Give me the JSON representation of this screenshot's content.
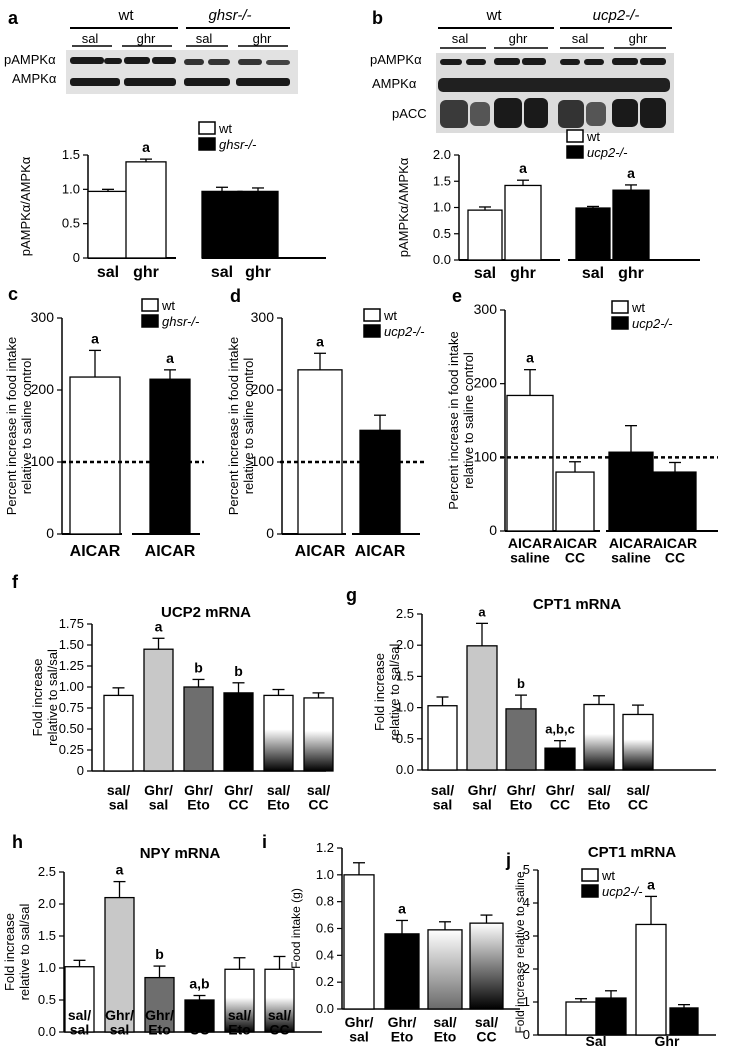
{
  "colors": {
    "wt": "#ffffff",
    "ko": "#000000",
    "light_gray": "#c8c8c8",
    "dark_gray": "#6e6e6e",
    "outline": "#000000"
  },
  "panels": {
    "a": {
      "letter": "a",
      "blot": {
        "groups": [
          "wt",
          "ghsr-/-"
        ],
        "treatments": [
          "sal",
          "ghr",
          "sal",
          "ghr"
        ],
        "rows": [
          "pAMPKα",
          "AMPKα"
        ]
      }
    },
    "b": {
      "letter": "b",
      "blot": {
        "groups": [
          "wt",
          "ucp2-/-"
        ],
        "treatments": [
          "sal",
          "ghr",
          "sal",
          "ghr"
        ],
        "rows": [
          "pAMPKα",
          "AMPKα",
          "pACC"
        ]
      }
    },
    "c": {
      "letter": "c"
    },
    "d": {
      "letter": "d"
    },
    "e": {
      "letter": "e"
    },
    "f": {
      "letter": "f"
    },
    "g": {
      "letter": "g"
    },
    "h": {
      "letter": "h"
    },
    "i": {
      "letter": "i"
    },
    "j": {
      "letter": "j"
    }
  },
  "chart_data": [
    {
      "id": "a",
      "type": "bar",
      "ylabel": "pAMPKα/AMPKα",
      "ylim": [
        0,
        1.5
      ],
      "yticks": [
        "0",
        "0.5",
        "1.0",
        "1.5"
      ],
      "categories": [
        "sal",
        "ghr",
        "sal",
        "ghr"
      ],
      "values": [
        0.97,
        1.4,
        0.97,
        0.97
      ],
      "errors": [
        0.03,
        0.04,
        0.06,
        0.05
      ],
      "fills": [
        "wt",
        "wt",
        "ko",
        "ko"
      ],
      "annotations": [
        "",
        "a",
        "",
        ""
      ],
      "legend": [
        "wt",
        "ghsr-/-"
      ],
      "legend_position": "top-right"
    },
    {
      "id": "b",
      "type": "bar",
      "ylabel": "pAMPKα/AMPKα",
      "ylim": [
        0,
        2.0
      ],
      "yticks": [
        "0.0",
        "0.5",
        "1.0",
        "1.5",
        "2.0"
      ],
      "categories": [
        "sal",
        "ghr",
        "sal",
        "ghr"
      ],
      "values": [
        0.95,
        1.42,
        0.99,
        1.33
      ],
      "errors": [
        0.06,
        0.1,
        0.03,
        0.1
      ],
      "fills": [
        "wt",
        "wt",
        "ko",
        "ko"
      ],
      "annotations": [
        "",
        "a",
        "",
        "a"
      ],
      "legend": [
        "wt",
        "ucp2-/-"
      ],
      "legend_position": "top-right"
    },
    {
      "id": "c",
      "type": "bar",
      "ylabel": "Percent increase in food intake relative to saline control",
      "ylim": [
        0,
        300
      ],
      "yticks": [
        "0",
        "100",
        "200",
        "300"
      ],
      "categories": [
        "AICAR",
        "AICAR"
      ],
      "values": [
        218,
        215
      ],
      "errors": [
        37,
        13
      ],
      "fills": [
        "wt",
        "ko"
      ],
      "annotations": [
        "a",
        "a"
      ],
      "reference_line": 100,
      "legend": [
        "wt",
        "ghsr-/-"
      ],
      "legend_position": "top-right"
    },
    {
      "id": "d",
      "type": "bar",
      "ylabel": "Percent increase in food intake relative to saline control",
      "ylim": [
        0,
        300
      ],
      "yticks": [
        "0",
        "100",
        "200",
        "300"
      ],
      "categories": [
        "AICAR",
        "AICAR"
      ],
      "values": [
        228,
        144
      ],
      "errors": [
        23,
        21
      ],
      "fills": [
        "wt",
        "ko"
      ],
      "annotations": [
        "a",
        ""
      ],
      "reference_line": 100,
      "legend": [
        "wt",
        "ucp2-/-"
      ],
      "legend_position": "top-right"
    },
    {
      "id": "e",
      "type": "bar",
      "ylabel": "Percent increase in food intake relative to saline control",
      "ylim": [
        0,
        300
      ],
      "yticks": [
        "0",
        "100",
        "200",
        "300"
      ],
      "categories": [
        "AICAR\nsaline",
        "AICAR\nCC",
        "AICAR\nsaline",
        "AICAR\nCC"
      ],
      "values": [
        184,
        80,
        107,
        80
      ],
      "errors": [
        35,
        14,
        36,
        13
      ],
      "fills": [
        "wt",
        "wt",
        "ko",
        "ko"
      ],
      "annotations": [
        "a",
        "",
        "",
        ""
      ],
      "reference_line": 100,
      "legend": [
        "wt",
        "ucp2-/-"
      ],
      "legend_position": "top-right"
    },
    {
      "id": "f",
      "type": "bar",
      "title": "UCP2 mRNA",
      "ylabel": "Fold increase relative to sal/sal",
      "ylim": [
        0,
        1.75
      ],
      "yticks": [
        "0",
        "0.25",
        "0.50",
        "0.75",
        "1.00",
        "1.25",
        "1.50",
        "1.75"
      ],
      "categories": [
        "sal/\nsal",
        "Ghr/\nsal",
        "Ghr/\nEto",
        "Ghr/\nCC",
        "sal/\nEto",
        "sal/\nCC"
      ],
      "values": [
        0.9,
        1.45,
        1.0,
        0.93,
        0.9,
        0.87
      ],
      "errors": [
        0.09,
        0.13,
        0.09,
        0.12,
        0.07,
        0.06
      ],
      "fills": [
        "wt",
        "light_gray",
        "dark_gray",
        "ko",
        "gradient",
        "gradient"
      ],
      "annotations": [
        "",
        "a",
        "b",
        "b",
        "",
        ""
      ]
    },
    {
      "id": "g",
      "type": "bar",
      "title": "CPT1 mRNA",
      "ylabel": "Fold increase relative to sal/sal",
      "ylim": [
        0,
        2.5
      ],
      "yticks": [
        "0.0",
        "0.5",
        "1.0",
        "1.5",
        "2.0",
        "2.5"
      ],
      "categories": [
        "sal/\nsal",
        "Ghr/\nsal",
        "Ghr/\nEto",
        "Ghr/\nCC",
        "sal/\nEto",
        "sal/\nCC"
      ],
      "values": [
        1.03,
        1.99,
        0.98,
        0.35,
        1.05,
        0.89
      ],
      "errors": [
        0.14,
        0.36,
        0.22,
        0.12,
        0.14,
        0.15
      ],
      "fills": [
        "wt",
        "light_gray",
        "dark_gray",
        "ko",
        "gradient",
        "gradient"
      ],
      "annotations": [
        "",
        "a",
        "b",
        "a,b,c",
        "",
        ""
      ]
    },
    {
      "id": "h",
      "type": "bar",
      "title": "NPY mRNA",
      "ylabel": "Fold increase relative to sal/sal",
      "ylim": [
        0,
        2.5
      ],
      "yticks": [
        "0.0",
        "0.5",
        "1.0",
        "1.5",
        "2.0",
        "2.5"
      ],
      "categories": [
        "sal/\nsal",
        "Ghr/\nsal",
        "Ghr/\nEto",
        "Ghr/\nCC",
        "sal/\nEto",
        "sal/\nCC"
      ],
      "values": [
        1.02,
        2.1,
        0.85,
        0.5,
        0.98,
        0.98
      ],
      "errors": [
        0.1,
        0.25,
        0.18,
        0.07,
        0.18,
        0.2
      ],
      "fills": [
        "wt",
        "light_gray",
        "dark_gray",
        "ko",
        "gradient",
        "gradient"
      ],
      "annotations": [
        "",
        "a",
        "b",
        "a,b",
        "",
        ""
      ]
    },
    {
      "id": "i",
      "type": "bar",
      "ylabel": "Food intake (g)",
      "ylim": [
        0,
        1.2
      ],
      "yticks": [
        "0.0",
        "0.2",
        "0.4",
        "0.6",
        "0.8",
        "1.0",
        "1.2"
      ],
      "categories": [
        "Ghr/\nsal",
        "Ghr/\nEto",
        "sal/\nEto",
        "sal/\nCC"
      ],
      "values": [
        1.0,
        0.56,
        0.59,
        0.64
      ],
      "errors": [
        0.09,
        0.1,
        0.06,
        0.06
      ],
      "fills": [
        "wt",
        "ko",
        "gradient_light",
        "gradient_dark"
      ],
      "annotations": [
        "",
        "a",
        "",
        ""
      ]
    },
    {
      "id": "j",
      "type": "bar",
      "title": "CPT1 mRNA",
      "ylabel": "Fold increase relative to saline",
      "ylim": [
        0,
        5
      ],
      "yticks": [
        "0",
        "1",
        "2",
        "3",
        "4",
        "5"
      ],
      "categories": [
        "Sal",
        "Ghr"
      ],
      "series": [
        {
          "name": "wt",
          "values": [
            1.0,
            3.35
          ],
          "errors": [
            0.1,
            0.85
          ],
          "fill": "wt",
          "annotations": [
            "",
            "a"
          ]
        },
        {
          "name": "ucp2-/-",
          "values": [
            1.12,
            0.82
          ],
          "errors": [
            0.22,
            0.1
          ],
          "fill": "ko",
          "annotations": [
            "",
            ""
          ]
        }
      ],
      "legend": [
        "wt",
        "ucp2-/-"
      ],
      "legend_position": "top-left"
    }
  ]
}
